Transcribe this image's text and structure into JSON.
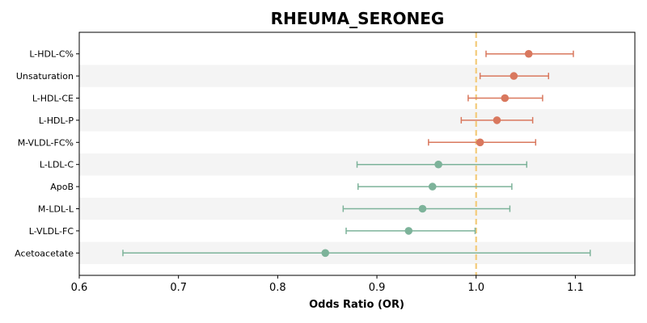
{
  "chart_data": {
    "type": "forest",
    "title": "RHEUMA_SERONEG",
    "xlabel": "Odds Ratio (OR)",
    "ylabel": "",
    "xlim": [
      0.6,
      1.16
    ],
    "xticks": [
      0.6,
      0.7,
      0.8,
      0.9,
      1.0,
      1.1
    ],
    "xtick_labels": [
      "0.6",
      "0.7",
      "0.8",
      "0.9",
      "1.0",
      "1.1"
    ],
    "reference_line": 1.0,
    "colors": {
      "positive": "#D9785E",
      "negative": "#7DB39A",
      "reference": "#F3CB7A",
      "band": "#F4F4F4"
    },
    "rows": [
      {
        "label": "L-HDL-C%",
        "or": 1.053,
        "lo": 1.01,
        "hi": 1.098
      },
      {
        "label": "Unsaturation",
        "or": 1.038,
        "lo": 1.004,
        "hi": 1.073
      },
      {
        "label": "L-HDL-CE",
        "or": 1.029,
        "lo": 0.992,
        "hi": 1.067
      },
      {
        "label": "L-HDL-P",
        "or": 1.021,
        "lo": 0.985,
        "hi": 1.057
      },
      {
        "label": "M-VLDL-FC%",
        "or": 1.004,
        "lo": 0.952,
        "hi": 1.06
      },
      {
        "label": "L-LDL-C",
        "or": 0.962,
        "lo": 0.88,
        "hi": 1.051
      },
      {
        "label": "ApoB",
        "or": 0.956,
        "lo": 0.881,
        "hi": 1.036
      },
      {
        "label": "M-LDL-L",
        "or": 0.946,
        "lo": 0.866,
        "hi": 1.034
      },
      {
        "label": "L-VLDL-FC",
        "or": 0.932,
        "lo": 0.869,
        "hi": 0.999
      },
      {
        "label": "Acetoacetate",
        "or": 0.848,
        "lo": 0.644,
        "hi": 1.115
      }
    ]
  }
}
